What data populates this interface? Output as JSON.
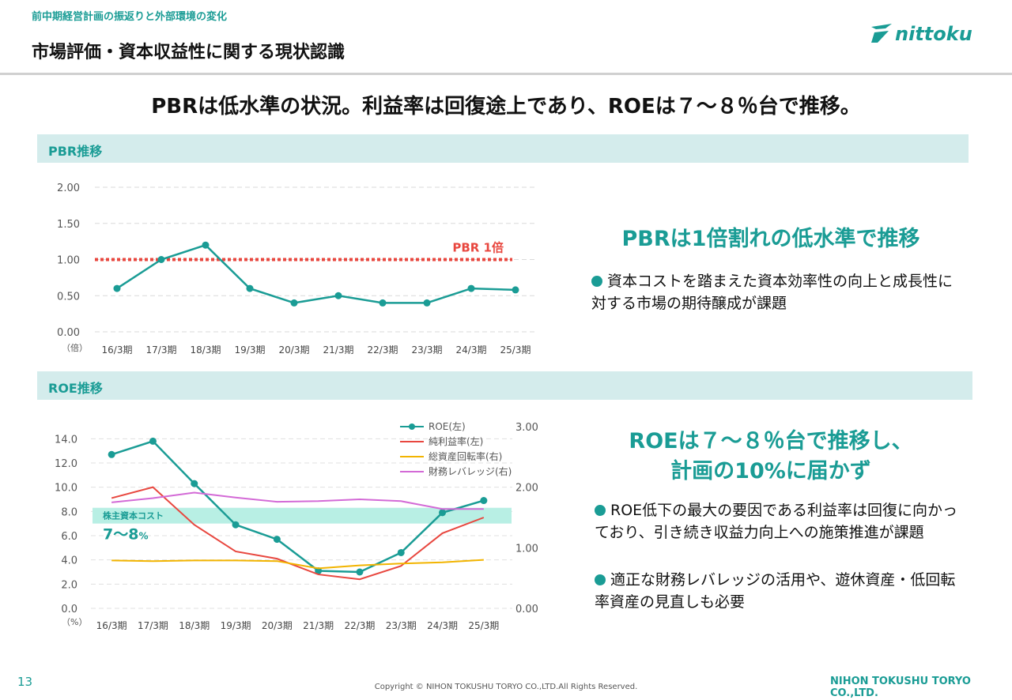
{
  "header": {
    "breadcrumb": "前中期経営計画の振返りと外部環境の変化",
    "title": "市場評価・資本収益性に関する現状認識",
    "logo_text": "nittoku"
  },
  "headline": "PBRは低水準の状況。利益率は回復途上であり、ROEは７～８％台で推移。",
  "sections": {
    "pbr_label": "PBR推移",
    "roe_label": "ROE推移"
  },
  "pbr_panel": {
    "heading": "PBRは1倍割れの低水準で推移",
    "bullets": [
      "資本コストを踏まえた資本効率性の向上と成長性に対する市場の期待醸成が課題"
    ]
  },
  "roe_panel": {
    "heading_line1": "ROEは７～８％台で推移し、",
    "heading_line2": "計画の10%に届かず",
    "bullets": [
      "ROE低下の最大の要因である利益率は回復に向かっており、引き続き収益力向上への施策推進が課題",
      "適正な財務レバレッジの活用や、遊休資産・低回転率資産の見直しも必要"
    ]
  },
  "colors": {
    "accent": "#1a9c95",
    "band": "#d4ecec",
    "pbr_line": "#1a9c95",
    "pbr_ref": "#e8473f",
    "roe": "#1a9c95",
    "margin": "#e8473f",
    "turnover": "#f2b400",
    "leverage": "#d36ad6",
    "cost_band": "#b8efe4"
  },
  "chart_data": [
    {
      "type": "line",
      "categories": [
        "16/3期",
        "17/3期",
        "18/3期",
        "19/3期",
        "20/3期",
        "21/3期",
        "22/3期",
        "23/3期",
        "24/3期",
        "25/3期"
      ],
      "series": [
        {
          "values": [
            0.6,
            1.0,
            1.2,
            0.6,
            0.4,
            0.5,
            0.4,
            0.4,
            0.6,
            0.58
          ]
        }
      ],
      "yticks": [
        "0.00",
        "0.50",
        "1.00",
        "1.50",
        "2.00"
      ],
      "ylim": [
        0,
        2
      ],
      "unit_label": "（倍）",
      "reference_line": {
        "value": 1.0,
        "label": "PBR  1倍"
      },
      "grid": true
    },
    {
      "type": "line",
      "categories": [
        "16/3期",
        "17/3期",
        "18/3期",
        "19/3期",
        "20/3期",
        "21/3期",
        "22/3期",
        "23/3期",
        "24/3期",
        "25/3期"
      ],
      "series": [
        {
          "name": "ROE(左)",
          "axis": "left",
          "values": [
            12.7,
            13.8,
            10.3,
            6.9,
            5.7,
            3.1,
            3.0,
            4.6,
            7.9,
            8.9
          ]
        },
        {
          "name": "純利益率(左)",
          "axis": "left",
          "values": [
            9.1,
            10.0,
            6.9,
            4.7,
            4.1,
            2.8,
            2.4,
            3.5,
            6.2,
            7.5
          ]
        },
        {
          "name": "総資産回転率(右)",
          "axis": "right",
          "values": [
            0.79,
            0.78,
            0.79,
            0.79,
            0.78,
            0.66,
            0.71,
            0.74,
            0.76,
            0.8
          ]
        },
        {
          "name": "財務レバレッジ(右)",
          "axis": "right",
          "values": [
            1.75,
            1.82,
            1.91,
            1.83,
            1.76,
            1.77,
            1.8,
            1.77,
            1.64,
            1.64
          ]
        }
      ],
      "yticks_left": [
        "0.0",
        "2.0",
        "4.0",
        "6.0",
        "8.0",
        "10.0",
        "12.0",
        "14.0"
      ],
      "ylim_left": [
        0,
        15
      ],
      "yticks_right": [
        "0.00",
        "1.00",
        "2.00",
        "3.00"
      ],
      "ylim_right": [
        0,
        3
      ],
      "unit_label": "（%）",
      "cost_band": {
        "from": 7,
        "to": 8.3,
        "label": "株主資本コスト",
        "value_label": "7～8",
        "value_unit": "%"
      },
      "legend": "top-right",
      "grid": true
    }
  ],
  "footer": {
    "page_number": "13",
    "copyright": "Copyright © NIHON TOKUSHU TORYO CO.,LTD.All Rights Reserved.",
    "company": "NIHON TOKUSHU TORYO CO.,LTD."
  }
}
